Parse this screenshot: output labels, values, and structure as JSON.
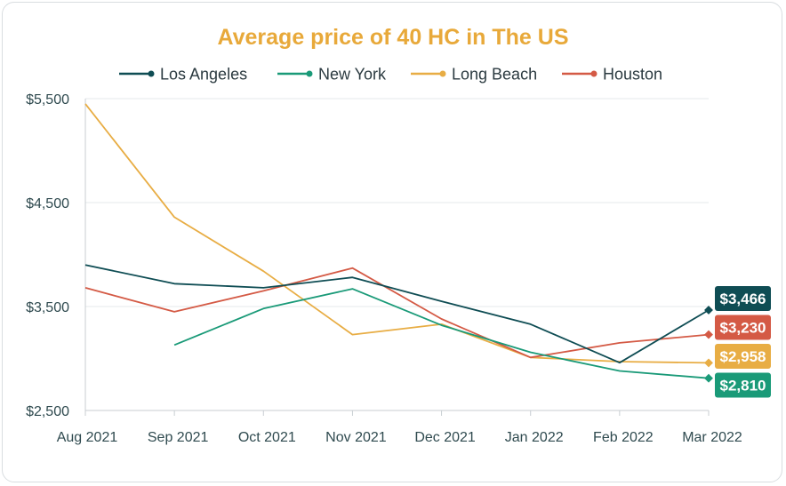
{
  "chart_data": {
    "type": "line",
    "title": "Average price of 40 HC in The US",
    "title_color": "#e8a93a",
    "categories": [
      "Aug 2021",
      "Sep 2021",
      "Oct 2021",
      "Nov 2021",
      "Dec 2021",
      "Jan 2022",
      "Feb 2022",
      "Mar 2022"
    ],
    "y_ticks": [
      "$5,500",
      "$4,500",
      "$3,500",
      "$2,500"
    ],
    "y_tick_values": [
      5500,
      4500,
      3500,
      2500
    ],
    "ylim": [
      2500,
      5500
    ],
    "legend_position": "top",
    "series": [
      {
        "name": "Los Angeles",
        "color": "#0f4d54",
        "values": [
          3900,
          3720,
          3680,
          3780,
          3550,
          3330,
          2960,
          3466
        ],
        "end_label": "$3,466"
      },
      {
        "name": "New York",
        "color": "#1a9a78",
        "values": [
          null,
          3130,
          3480,
          3670,
          3320,
          3060,
          2880,
          2810
        ],
        "end_label": "$2,810"
      },
      {
        "name": "Long Beach",
        "color": "#e8ad44",
        "values": [
          5450,
          4360,
          3840,
          3230,
          3330,
          3010,
          2970,
          2958
        ],
        "end_label": "$2,958"
      },
      {
        "name": "Houston",
        "color": "#d45a45",
        "values": [
          3680,
          3450,
          3650,
          3870,
          3380,
          3010,
          3150,
          3230
        ],
        "end_label": "$3,230"
      }
    ]
  }
}
